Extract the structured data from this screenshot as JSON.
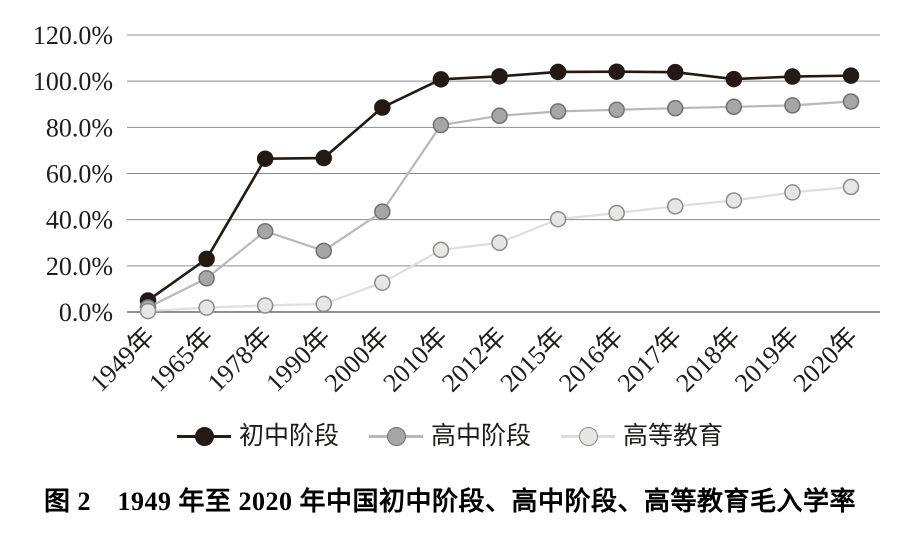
{
  "caption": "图 2　1949 年至 2020 年中国初中阶段、高中阶段、高等教育毛入学率",
  "palette": {
    "background": "#ffffff",
    "gridline": "#8c8c8c",
    "axis_line": "#696969",
    "tick_text": "#1d1d1b"
  },
  "chart_data": {
    "type": "line",
    "title": "图 2　1949 年至 2020 年中国初中阶段、高中阶段、高等教育毛入学率",
    "xlabel": "",
    "ylabel": "",
    "ylim": [
      0,
      120
    ],
    "grid": true,
    "legend_position": "bottom",
    "categories": [
      "1949年",
      "1965年",
      "1978年",
      "1990年",
      "2000年",
      "2010年",
      "2012年",
      "2015年",
      "2016年",
      "2017年",
      "2018年",
      "2019年",
      "2020年"
    ],
    "y_ticks": [
      {
        "label": "120.0%",
        "v": 120
      },
      {
        "label": "100.0%",
        "v": 100
      },
      {
        "label": "80.0%",
        "v": 80
      },
      {
        "label": "60.0%",
        "v": 60
      },
      {
        "label": "40.0%",
        "v": 40
      },
      {
        "label": "20.0%",
        "v": 20
      },
      {
        "label": "0.0%",
        "v": 0
      }
    ],
    "series": [
      {
        "name": "初中阶段",
        "values": [
          5.0,
          23.0,
          66.4,
          66.7,
          88.6,
          100.8,
          102.1,
          104.0,
          104.1,
          103.9,
          100.9,
          102.0,
          102.4
        ],
        "line_color": "#231a15",
        "marker_fill": "#231a15",
        "marker_stroke": "#231a15"
      },
      {
        "name": "高中阶段",
        "values": [
          2.0,
          14.6,
          35.0,
          26.5,
          43.5,
          81.0,
          85.0,
          86.9,
          87.6,
          88.3,
          88.9,
          89.5,
          91.2
        ],
        "line_color": "#b8b8b8",
        "marker_fill": "#a6a6a6",
        "marker_stroke": "#707070"
      },
      {
        "name": "高等教育",
        "values": [
          0.4,
          1.9,
          2.8,
          3.5,
          12.7,
          26.9,
          30.0,
          40.2,
          42.9,
          45.8,
          48.3,
          51.8,
          54.2
        ],
        "line_color": "#dedede",
        "marker_fill": "#e6e6e4",
        "marker_stroke": "#8c8c8a"
      }
    ]
  }
}
